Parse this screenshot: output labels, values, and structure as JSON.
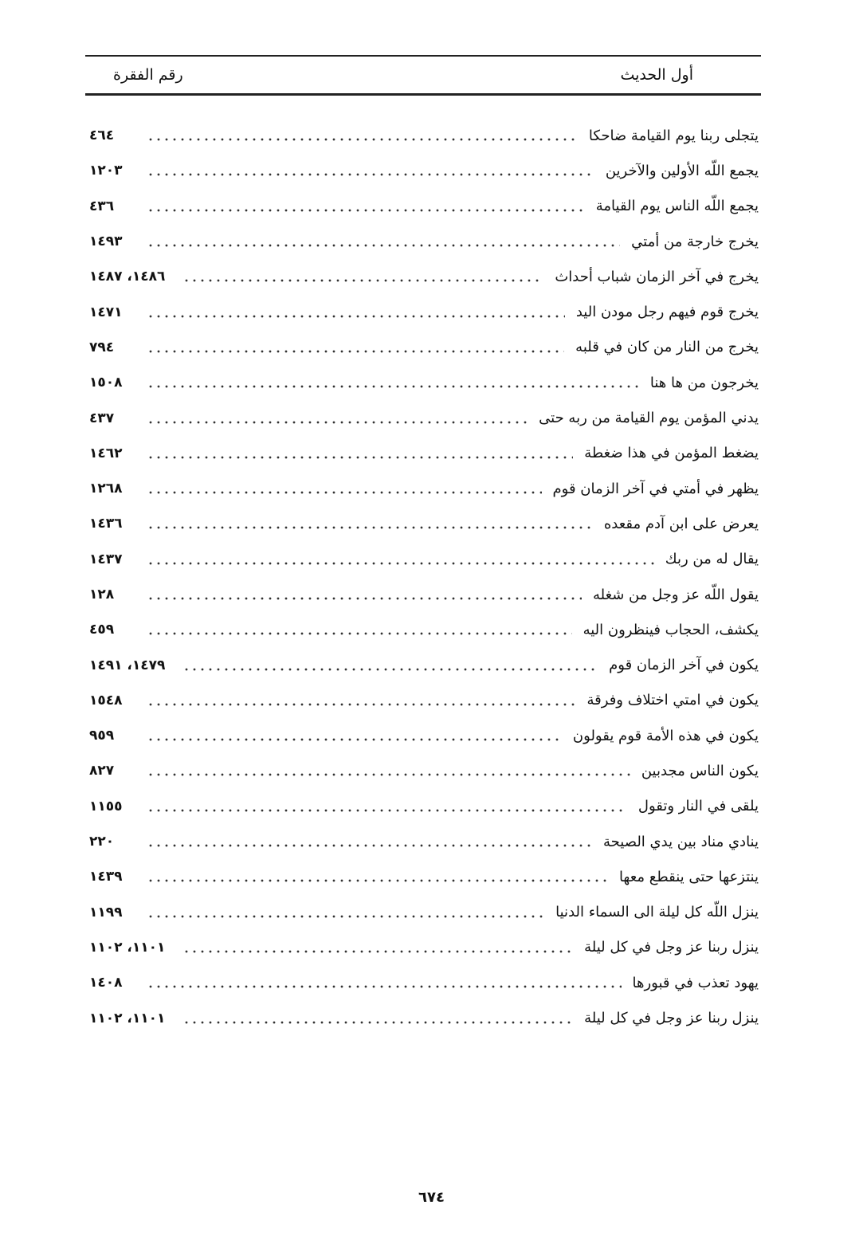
{
  "header": {
    "col_text": "أول الحديث",
    "col_number": "رقم الفقرة"
  },
  "entries": [
    {
      "text": "يتجلى ربنا يوم القيامة ضاحكا",
      "number": "٤٦٤"
    },
    {
      "text": "يجمع اللّه الأولين والآخرين",
      "number": "١٢٠٣"
    },
    {
      "text": "يجمع اللّه الناس يوم القيامة",
      "number": "٤٣٦"
    },
    {
      "text": "يخرج خارجة من أمتي",
      "number": "١٤٩٣"
    },
    {
      "text": "يخرج في آخر الزمان شباب أحداث",
      "number": "١٤٨٦، ١٤٨٧"
    },
    {
      "text": "يخرج قوم فيهم رجل مودن اليد",
      "number": "١٤٧١"
    },
    {
      "text": "يخرج من النار من كان في قلبه",
      "number": "٧٩٤"
    },
    {
      "text": "يخرجون من ها هنا",
      "number": "١٥٠٨"
    },
    {
      "text": "يدني المؤمن يوم القيامة من ربه حتى",
      "number": "٤٣٧"
    },
    {
      "text": "يضغط المؤمن في هذا ضغطة",
      "number": "١٤٦٢"
    },
    {
      "text": "يظهر في أمتي في آخر الزمان قوم",
      "number": "١٢٦٨"
    },
    {
      "text": "يعرض على ابن آدم مقعده",
      "number": "١٤٣٦"
    },
    {
      "text": "يقال له من ربك",
      "number": "١٤٣٧"
    },
    {
      "text": "يقول اللّه عز وجل من شغله",
      "number": "١٢٨"
    },
    {
      "text": "يكشف، الحجاب فينظرون اليه",
      "number": "٤٥٩"
    },
    {
      "text": "يكون في آخر الزمان قوم",
      "number": "١٤٧٩، ١٤٩١"
    },
    {
      "text": "يكون في امتي اختلاف وفرقة",
      "number": "١٥٤٨"
    },
    {
      "text": "يكون في هذه الأمة قوم يقولون",
      "number": "٩٥٩"
    },
    {
      "text": "يكون الناس مجدبين",
      "number": "٨٢٧"
    },
    {
      "text": "يلقى في النار وتقول",
      "number": "١١٥٥"
    },
    {
      "text": "ينادي مناد بين يدي الصيحة",
      "number": "٢٢٠"
    },
    {
      "text": "ينتزعها حتى ينقطع معها",
      "number": "١٤٣٩"
    },
    {
      "text": "ينزل اللّه كل ليلة الى السماء الدنيا",
      "number": "١١٩٩"
    },
    {
      "text": "ينزل ربنا عز وجل في كل ليلة",
      "number": "١١٠١، ١١٠٢"
    },
    {
      "text": "يهود تعذب في قبورها",
      "number": "١٤٠٨"
    },
    {
      "text": "ينزل ربنا عز وجل في كل ليلة",
      "number": "١١٠١، ١١٠٢"
    }
  ],
  "page_number": "٦٧٤"
}
